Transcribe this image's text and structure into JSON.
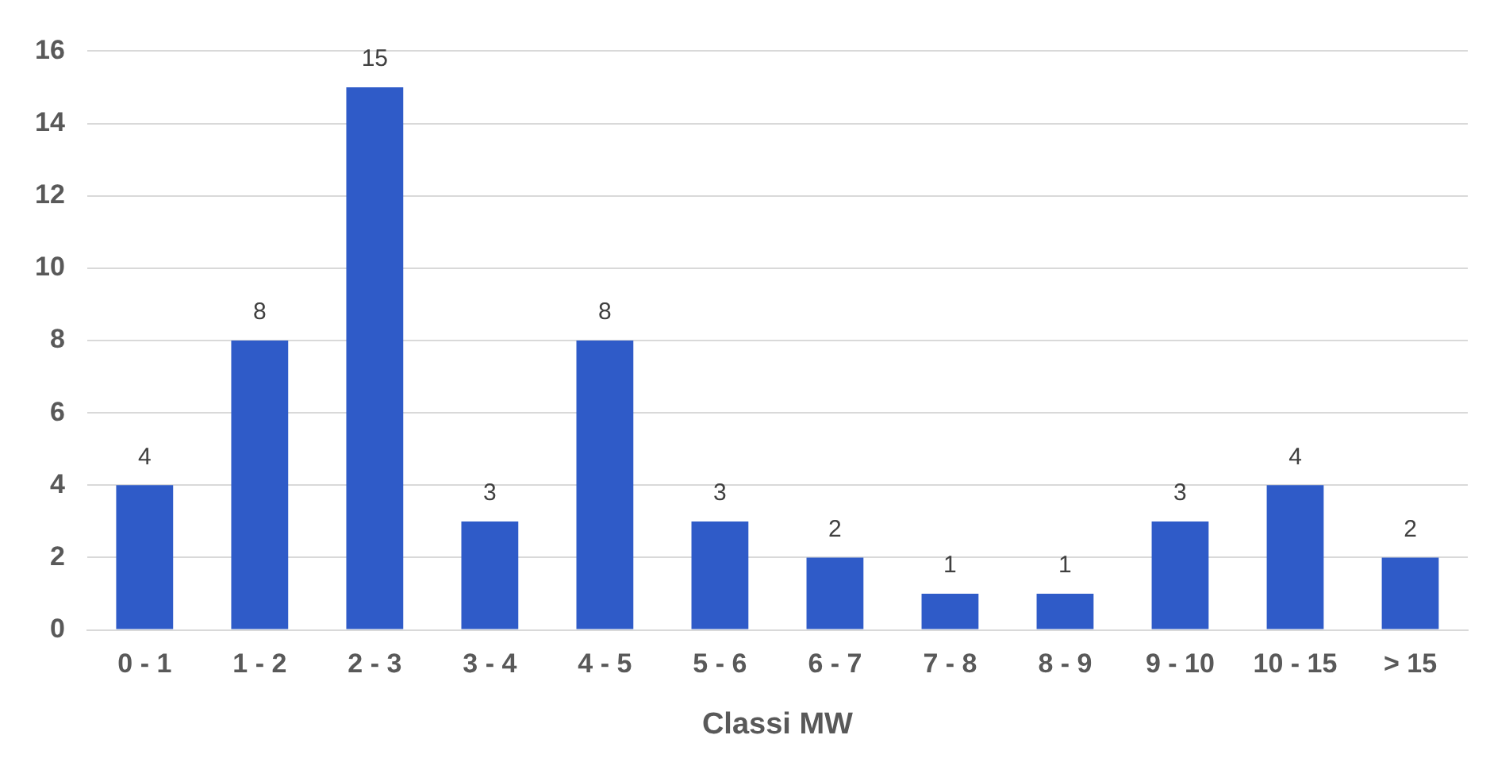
{
  "chart_data": {
    "type": "bar",
    "xlabel": "Classi MW",
    "categories": [
      "0 - 1",
      "1 - 2",
      "2 - 3",
      "3 - 4",
      "4 - 5",
      "5 - 6",
      "6 - 7",
      "7 - 8",
      "8 - 9",
      "9 - 10",
      "10 - 15",
      "> 15"
    ],
    "values": [
      4,
      8,
      15,
      3,
      8,
      3,
      2,
      1,
      1,
      3,
      4,
      2
    ],
    "color": "#2f5bc8",
    "ylim": [
      0,
      16
    ],
    "yticks": [
      0,
      2,
      4,
      6,
      8,
      10,
      12,
      14,
      16
    ],
    "grid": "y",
    "data_labels": true
  }
}
